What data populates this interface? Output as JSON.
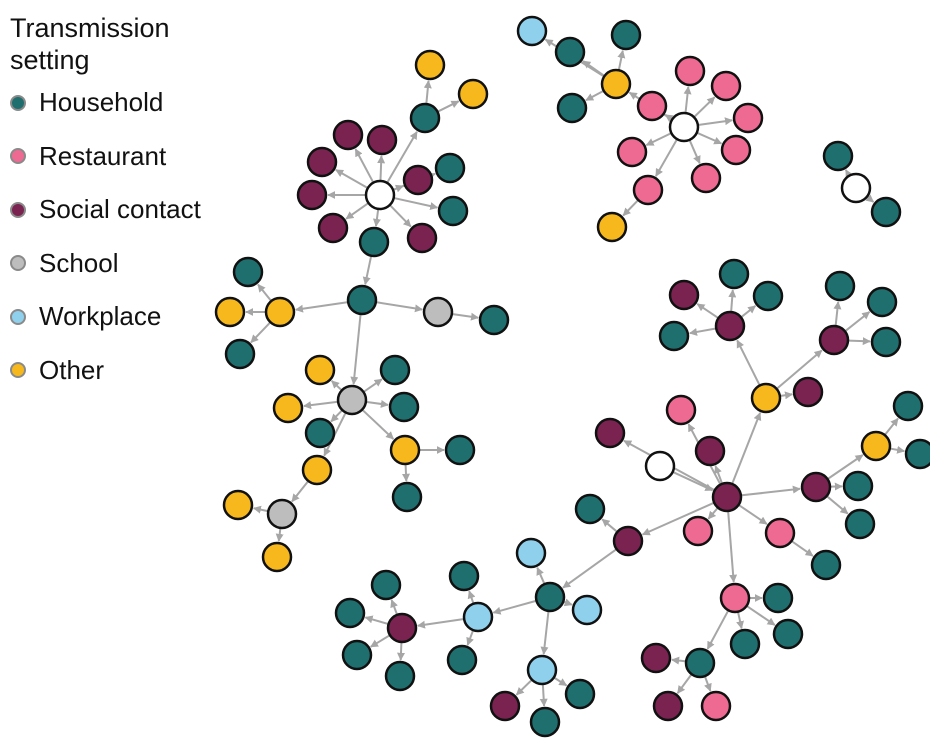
{
  "legend": {
    "title": "Transmission setting",
    "items": [
      {
        "label": "Household",
        "color": "#1f6f6f"
      },
      {
        "label": "Restaurant",
        "color": "#ee6a92"
      },
      {
        "label": "Social contact",
        "color": "#7a2350"
      },
      {
        "label": "School",
        "color": "#bdbdbd"
      },
      {
        "label": "Workplace",
        "color": "#8fd0ec"
      },
      {
        "label": "Other",
        "color": "#f6b81c"
      }
    ]
  },
  "index_case_color": "#ffffff",
  "clusters": 4
}
